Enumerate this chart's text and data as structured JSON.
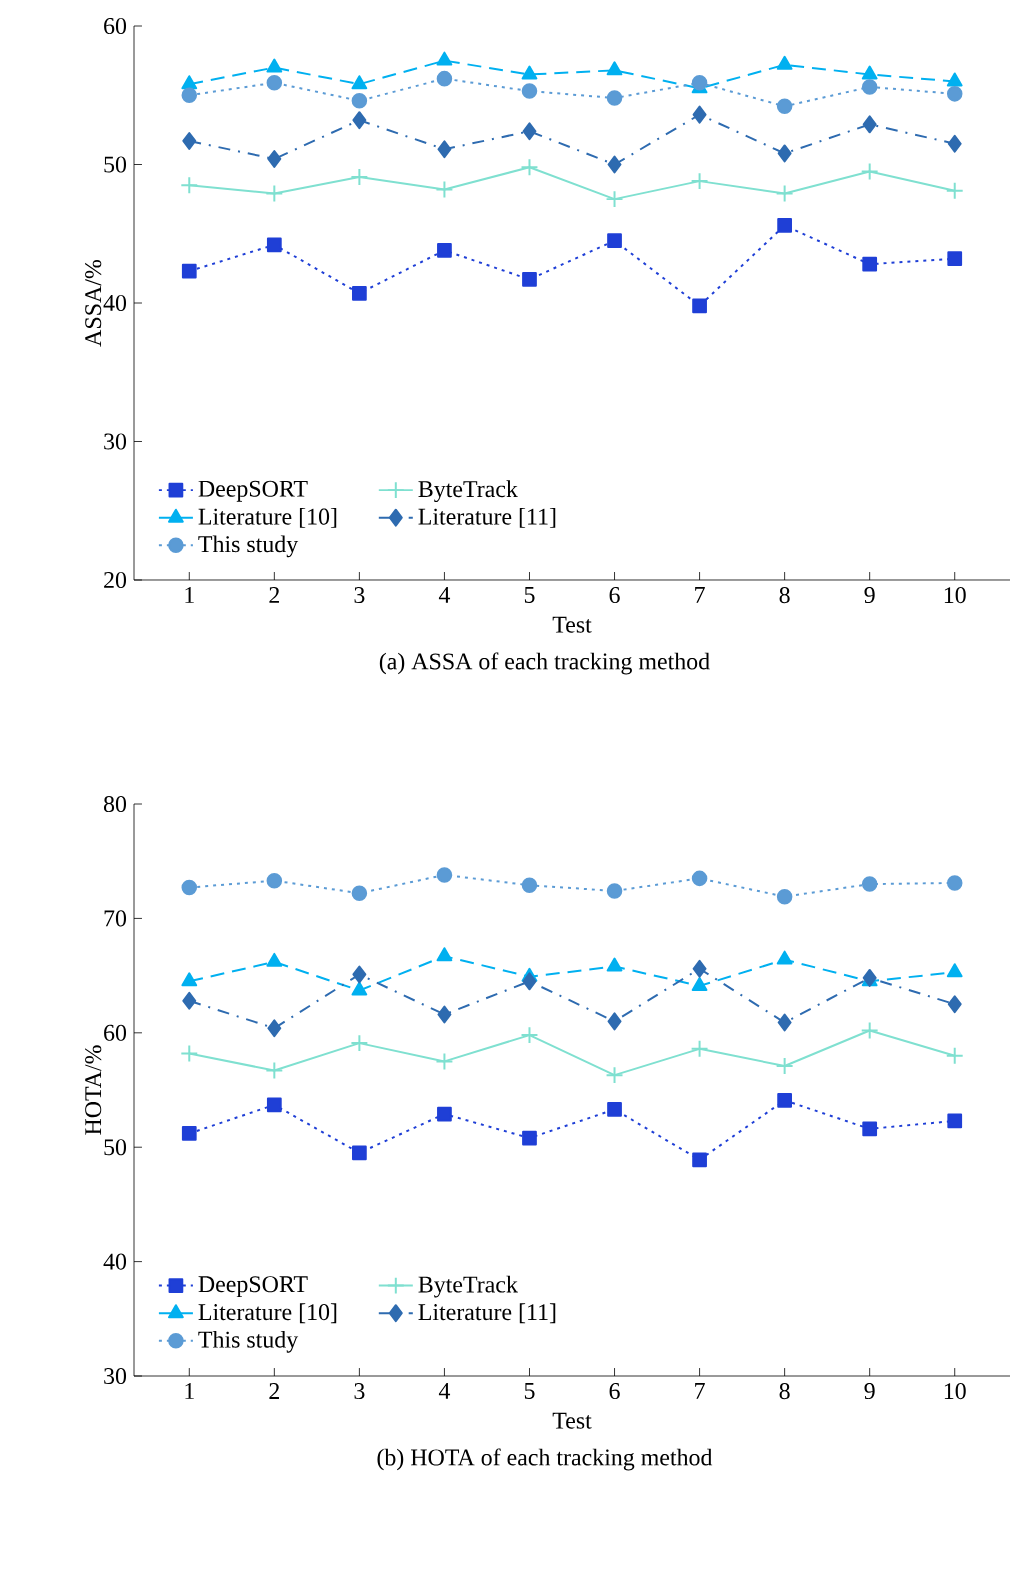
{
  "chart_data": [
    {
      "type": "line",
      "title": "(a) ASSA of each tracking method",
      "xlabel": "Test",
      "ylabel": "ASSA/%",
      "x": [
        1,
        2,
        3,
        4,
        5,
        6,
        7,
        8,
        9,
        10
      ],
      "xlim": [
        0.35,
        10.65
      ],
      "xticks": [
        1,
        2,
        3,
        4,
        5,
        6,
        7,
        8,
        9,
        10
      ],
      "ylim": [
        20,
        60
      ],
      "yticks": [
        20,
        30,
        40,
        50,
        60
      ],
      "legend": "bottom left",
      "grid": false,
      "series": [
        {
          "name": "DeepSORT",
          "color": "#1f3fd6",
          "marker": "square",
          "line_style": "dotted",
          "values": [
            42.3,
            44.2,
            40.7,
            43.8,
            41.7,
            44.5,
            39.8,
            45.6,
            42.8,
            43.2
          ]
        },
        {
          "name": "ByteTrack",
          "color": "#7fe0d0",
          "marker": "cross",
          "line_style": "solid",
          "values": [
            48.5,
            47.9,
            49.1,
            48.2,
            49.8,
            47.5,
            48.8,
            47.9,
            49.5,
            48.1
          ]
        },
        {
          "name": "Literature [10]",
          "color": "#00b0f0",
          "marker": "triangle",
          "line_style": "dashed",
          "values": [
            55.8,
            57.0,
            55.8,
            57.5,
            56.5,
            56.8,
            55.5,
            57.2,
            56.5,
            56.0
          ]
        },
        {
          "name": "Literature [11]",
          "color": "#2e6bb0",
          "marker": "diamond",
          "line_style": "dashdot",
          "values": [
            51.7,
            50.4,
            53.2,
            51.1,
            52.4,
            50.0,
            53.6,
            50.8,
            52.9,
            51.5
          ]
        },
        {
          "name": "This study",
          "color": "#5b9bd5",
          "marker": "circle",
          "line_style": "dotted",
          "values": [
            55.0,
            55.9,
            54.6,
            56.2,
            55.3,
            54.8,
            55.9,
            54.2,
            55.6,
            55.1
          ]
        }
      ]
    },
    {
      "type": "line",
      "title": "(b) HOTA of each tracking method",
      "xlabel": "Test",
      "ylabel": "HOTA/%",
      "x": [
        1,
        2,
        3,
        4,
        5,
        6,
        7,
        8,
        9,
        10
      ],
      "xlim": [
        0.35,
        10.65
      ],
      "xticks": [
        1,
        2,
        3,
        4,
        5,
        6,
        7,
        8,
        9,
        10
      ],
      "ylim": [
        30,
        80
      ],
      "yticks": [
        30,
        40,
        50,
        60,
        70,
        80
      ],
      "legend": "bottom left",
      "grid": false,
      "series": [
        {
          "name": "DeepSORT",
          "color": "#1f3fd6",
          "marker": "square",
          "line_style": "dotted",
          "values": [
            51.2,
            53.7,
            49.5,
            52.9,
            50.8,
            53.3,
            48.9,
            54.1,
            51.6,
            52.3
          ]
        },
        {
          "name": "ByteTrack",
          "color": "#7fe0d0",
          "marker": "cross",
          "line_style": "solid",
          "values": [
            58.2,
            56.7,
            59.1,
            57.5,
            59.8,
            56.3,
            58.6,
            57.1,
            60.2,
            58.0
          ]
        },
        {
          "name": "Literature [10]",
          "color": "#00b0f0",
          "marker": "triangle",
          "line_style": "dashed",
          "values": [
            64.5,
            66.2,
            63.7,
            66.7,
            64.9,
            65.8,
            64.1,
            66.4,
            64.5,
            65.3
          ]
        },
        {
          "name": "Literature [11]",
          "color": "#2e6bb0",
          "marker": "diamond",
          "line_style": "dashdot",
          "values": [
            62.8,
            60.4,
            65.1,
            61.6,
            64.5,
            61.0,
            65.6,
            60.9,
            64.8,
            62.5
          ]
        },
        {
          "name": "This study",
          "color": "#5b9bd5",
          "marker": "circle",
          "line_style": "dotted",
          "values": [
            72.7,
            73.3,
            72.2,
            73.8,
            72.9,
            72.4,
            73.5,
            71.9,
            73.0,
            73.1
          ]
        }
      ]
    }
  ]
}
